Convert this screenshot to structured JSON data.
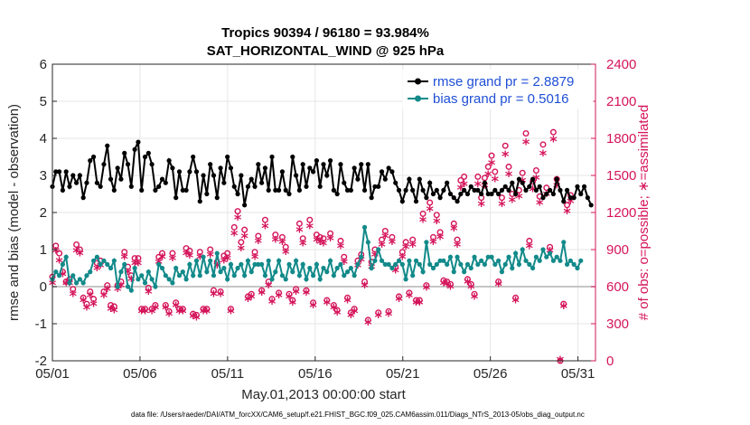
{
  "chart_data": {
    "type": "line",
    "title": "Tropics 90394 / 96180 = 93.984%",
    "subtitle": "SAT_HORIZONTAL_WIND @ 925 hPa",
    "xlabel": "May.01,2013 00:00:00 start",
    "ylabel_left": "rmse and bias (model - observation)",
    "ylabel_right": "# of obs: o=possible; ∗=assimilated",
    "x_ticks": [
      1,
      6,
      11,
      16,
      21,
      26,
      31
    ],
    "x_tick_labels": [
      "05/01",
      "05/06",
      "05/11",
      "05/16",
      "05/21",
      "05/26",
      "05/31"
    ],
    "xlim": [
      1,
      32
    ],
    "ylim_left": [
      -2,
      6
    ],
    "y_ticks_left": [
      -2,
      -1,
      0,
      1,
      2,
      3,
      4,
      5,
      6
    ],
    "ylim_right": [
      0,
      2400
    ],
    "y_ticks_right": [
      0,
      300,
      600,
      900,
      1200,
      1500,
      1800,
      2100,
      2400
    ],
    "grid": true,
    "legend_position": "top-right",
    "colors": {
      "rmse": "#000000",
      "bias": "#138a8a",
      "obs": "#d4145a",
      "legend_text": "#1f4fd6",
      "zero_line": "#b4b4b4"
    },
    "series": [
      {
        "name": "rmse grand pr = 2.8879",
        "axis": "left",
        "values": [
          2.7,
          3.1,
          3.1,
          2.6,
          3.1,
          2.7,
          3.0,
          2.8,
          3.0,
          2.4,
          2.8,
          3.4,
          3.5,
          2.8,
          2.7,
          3.3,
          3.8,
          2.9,
          2.6,
          3.2,
          2.9,
          3.6,
          3.3,
          2.7,
          3.7,
          3.9,
          2.6,
          3.5,
          3.6,
          3.3,
          2.6,
          2.7,
          2.9,
          2.8,
          3.4,
          3.2,
          2.4,
          3.1,
          2.6,
          2.6,
          3.1,
          3.5,
          3.1,
          2.3,
          3.0,
          2.5,
          3.3,
          3.0,
          2.4,
          3.2,
          2.8,
          3.5,
          3.2,
          2.7,
          2.5,
          3.0,
          2.2,
          2.7,
          2.9,
          2.7,
          3.3,
          2.8,
          3.2,
          2.6,
          3.5,
          2.6,
          2.6,
          3.1,
          2.6,
          2.5,
          3.5,
          3.0,
          2.6,
          3.3,
          2.7,
          3.2,
          3.1,
          3.4,
          2.7,
          3.3,
          3.0,
          3.4,
          2.6,
          2.5,
          3.3,
          2.8,
          2.6,
          2.6,
          3.2,
          2.9,
          3.3,
          2.6,
          3.3,
          2.4,
          2.7,
          2.7,
          3.1,
          2.9,
          3.2,
          3.1,
          2.8,
          2.6,
          2.3,
          2.6,
          2.9,
          2.6,
          2.3,
          2.9,
          2.6,
          2.4,
          2.8,
          2.5,
          2.6,
          2.4,
          2.6,
          2.8,
          2.5,
          2.4,
          2.3,
          2.5,
          2.6,
          2.5,
          2.7,
          2.6,
          2.6,
          2.5,
          2.8,
          2.5,
          2.5,
          2.6,
          2.5,
          2.6,
          2.7,
          2.6,
          2.8,
          2.5,
          2.9,
          2.8,
          2.6,
          2.7,
          2.9,
          2.6,
          2.7,
          2.4,
          2.5,
          2.6,
          2.5,
          2.9,
          2.6,
          2.3,
          2.6,
          2.4,
          2.4,
          2.7,
          2.5,
          2.7,
          2.4,
          2.2
        ]
      },
      {
        "name": "bias grand pr = 0.5016",
        "axis": "left",
        "values": [
          0.2,
          0.4,
          0.3,
          0.6,
          0.8,
          0.1,
          0.3,
          0.1,
          0.2,
          0.1,
          0.3,
          0.4,
          0.7,
          0.8,
          0.6,
          0.7,
          0.6,
          0.5,
          0.7,
          0.0,
          0.4,
          0.6,
          0.0,
          -0.1,
          0.5,
          0.2,
          0.3,
          0.1,
          0.4,
          0.2,
          0.0,
          0.6,
          0.5,
          0.3,
          0.2,
          0.1,
          0.5,
          0.3,
          0.4,
          0.2,
          0.6,
          0.3,
          0.7,
          0.3,
          0.8,
          0.4,
          0.7,
          0.3,
          0.9,
          0.4,
          0.5,
          0.2,
          0.6,
          0.3,
          0.5,
          0.6,
          0.3,
          0.7,
          0.4,
          0.6,
          0.6,
          0.6,
          0.3,
          0.7,
          0.2,
          0.4,
          0.7,
          0.3,
          0.2,
          0.6,
          0.4,
          0.7,
          0.3,
          0.6,
          0.2,
          0.5,
          0.3,
          0.6,
          0.2,
          0.5,
          0.4,
          0.7,
          0.3,
          0.5,
          0.6,
          0.3,
          0.4,
          0.5,
          0.3,
          0.6,
          0.8,
          1.6,
          1.2,
          0.5,
          0.7,
          1.0,
          0.7,
          0.6,
          0.6,
          0.5,
          0.6,
          0.7,
          0.6,
          0.2,
          0.7,
          0.3,
          0.7,
          0.6,
          0.4,
          1.2,
          0.6,
          0.5,
          0.6,
          0.7,
          0.7,
          0.6,
          0.8,
          0.4,
          0.8,
          0.6,
          0.4,
          0.6,
          0.5,
          0.8,
          0.6,
          0.7,
          0.6,
          0.8,
          0.8,
          0.6,
          0.7,
          0.4,
          0.6,
          0.8,
          0.5,
          0.9,
          0.6,
          1.0,
          0.7,
          0.6,
          0.5,
          0.8,
          0.7,
          1.0,
          0.8,
          0.9,
          0.7,
          0.8,
          0.7,
          1.2,
          0.6,
          0.7,
          0.6,
          0.5,
          0.7
        ]
      },
      {
        "name": "possible",
        "axis": "right",
        "marker": "o",
        "values": [
          680,
          930,
          870,
          720,
          640,
          660,
          580,
          940,
          900,
          510,
          460,
          560,
          500,
          790,
          810,
          560,
          610,
          450,
          440,
          610,
          640,
          880,
          760,
          690,
          830,
          830,
          420,
          420,
          590,
          420,
          450,
          840,
          870,
          450,
          400,
          870,
          470,
          420,
          420,
          910,
          890,
          380,
          370,
          880,
          420,
          420,
          900,
          570,
          800,
          560,
          850,
          870,
          420,
          1080,
          1210,
          960,
          1060,
          520,
          540,
          880,
          1010,
          570,
          1140,
          640,
          500,
          1020,
          550,
          1000,
          920,
          540,
          490,
          580,
          1110,
          990,
          570,
          1140,
          470,
          1020,
          1000,
          990,
          490,
          1030,
          450,
          410,
          970,
          840,
          510,
          390,
          420,
          810,
          860,
          640,
          330,
          800,
          900,
          390,
          980,
          1050,
          400,
          1000,
          760,
          520,
          880,
          960,
          550,
          980,
          490,
          490,
          1190,
          610,
          1280,
          1000,
          1180,
          1040,
          650,
          640,
          620,
          1110,
          980,
          1460,
          1490,
          660,
          620,
          540,
          1490,
          1320,
          1480,
          1570,
          1660,
          1530,
          640,
          1320,
          1740,
          1570,
          1350,
          510,
          1380,
          1520,
          1840,
          970,
          1450,
          1540,
          1330,
          1750,
          1400,
          920,
          1850,
          1470,
          0,
          460,
          1260,
          1340
        ]
      },
      {
        "name": "assimilated",
        "axis": "right",
        "marker": "*",
        "values": [
          620,
          880,
          800,
          690,
          620,
          620,
          530,
          880,
          860,
          480,
          420,
          520,
          450,
          740,
          760,
          520,
          570,
          410,
          400,
          570,
          600,
          830,
          710,
          650,
          780,
          780,
          390,
          390,
          550,
          390,
          420,
          790,
          830,
          420,
          370,
          820,
          440,
          390,
          390,
          860,
          840,
          350,
          340,
          830,
          390,
          390,
          850,
          530,
          760,
          530,
          800,
          820,
          390,
          1020,
          1150,
          900,
          1000,
          490,
          510,
          830,
          960,
          540,
          1080,
          600,
          470,
          970,
          520,
          950,
          870,
          510,
          460,
          550,
          1050,
          940,
          540,
          1080,
          440,
          970,
          950,
          940,
          460,
          980,
          420,
          380,
          920,
          790,
          480,
          360,
          390,
          760,
          810,
          600,
          300,
          750,
          850,
          360,
          930,
          1000,
          370,
          950,
          720,
          490,
          830,
          910,
          520,
          930,
          460,
          460,
          1130,
          580,
          1220,
          950,
          1120,
          990,
          620,
          610,
          590,
          1060,
          930,
          1390,
          1420,
          630,
          590,
          510,
          1420,
          1260,
          1410,
          1500,
          1590,
          1460,
          610,
          1260,
          1660,
          1500,
          1290,
          480,
          1320,
          1450,
          1760,
          920,
          1380,
          1470,
          1270,
          1670,
          1340,
          880,
          1780,
          1410,
          0,
          430,
          1200,
          1280
        ]
      }
    ]
  },
  "footer": "data file: /Users/raeder/DAI/ATM_forcXX/CAM6_setup/f.e21.FHIST_BGC.f09_025.CAM6assim.011/Diags_NTrS_2013-05/obs_diag_output.nc"
}
